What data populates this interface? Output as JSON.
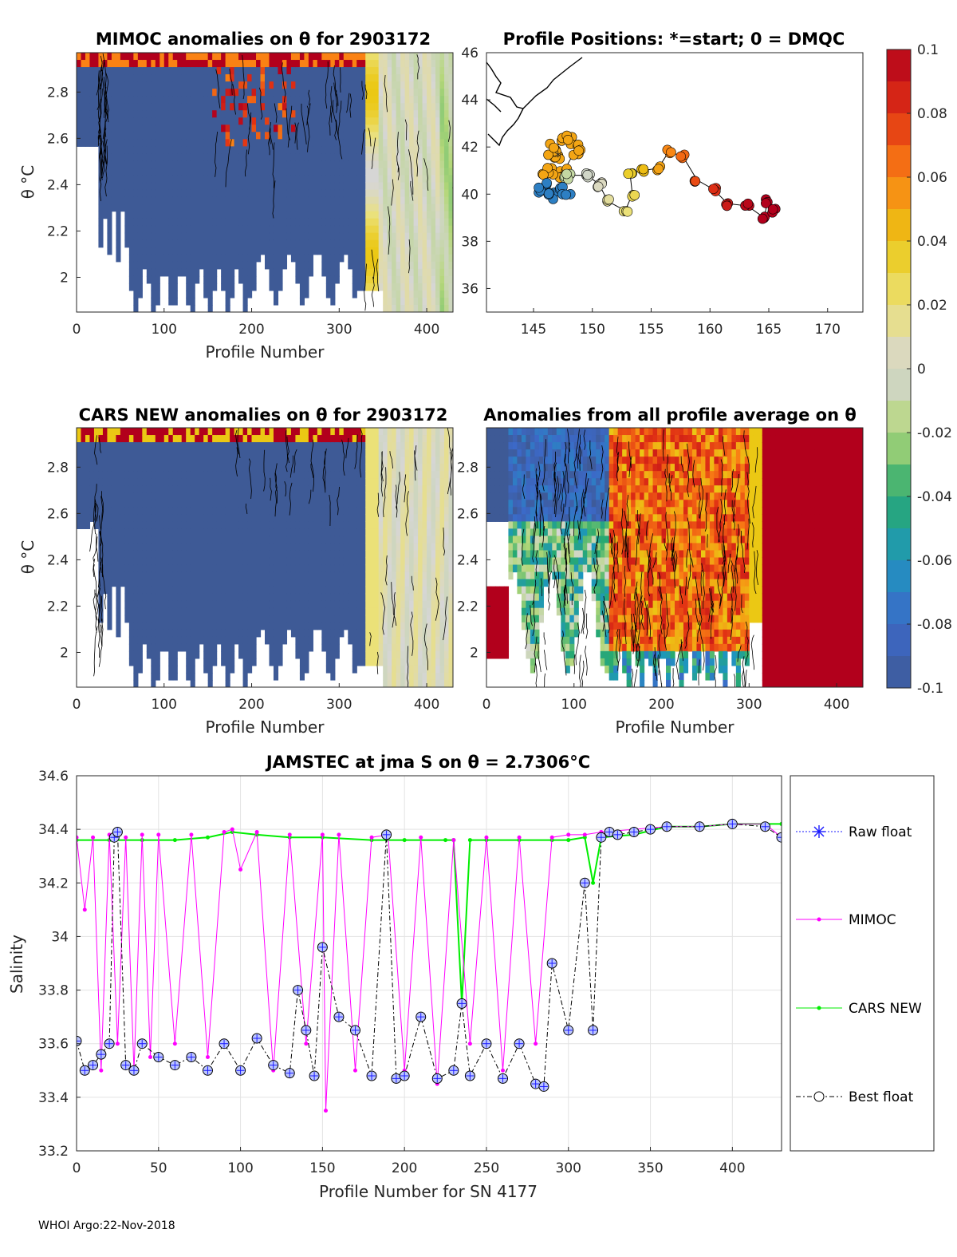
{
  "footer": "WHOI Argo:22-Nov-2018",
  "colors": {
    "mimoc": "#ff00ff",
    "cars": "#00ee00",
    "raw": "#1a1aff",
    "best": "#000000",
    "saturated_low": "#3e5a96",
    "saturated_high": "#b2001c",
    "zero": "#d6d6d6"
  },
  "colorbar": {
    "ticks": [
      "0.1",
      "0.08",
      "0.06",
      "0.04",
      "0.02",
      "0",
      "-0.02",
      "-0.04",
      "-0.06",
      "-0.08",
      "-0.1"
    ],
    "range": [
      -0.1,
      0.1
    ]
  },
  "chart_data": [
    {
      "id": "mimoc",
      "type": "heatmap",
      "title": "MIMOC anomalies on θ  for 2903172",
      "xlabel": "Profile Number",
      "ylabel": "θ °C",
      "xlim": [
        0,
        430
      ],
      "ylim": [
        1.85,
        2.97
      ],
      "xticks": [
        "0",
        "100",
        "200",
        "300",
        "400"
      ],
      "yticks": [
        "2",
        "2.2",
        "2.4",
        "2.6",
        "2.8"
      ],
      "summary": "mostly strong negative anomalies (~ -0.1) for profiles 0-330, near-zero anomalies for profiles 340-430, positive patches near top"
    },
    {
      "id": "positions",
      "type": "scatter",
      "title": "Profile Positions: *=start; 0 = DMQC",
      "xlim": [
        141,
        173
      ],
      "ylim": [
        35,
        46
      ],
      "xticks": [
        "145",
        "150",
        "155",
        "160",
        "165",
        "170"
      ],
      "yticks": [
        "36",
        "38",
        "40",
        "42",
        "44",
        "46"
      ],
      "track": [
        {
          "lon": 147.2,
          "lat": 41.6
        },
        {
          "lon": 146.5,
          "lat": 41.9
        },
        {
          "lon": 147.8,
          "lat": 42.3
        },
        {
          "lon": 148.6,
          "lat": 41.9
        },
        {
          "lon": 147.5,
          "lat": 40.9
        },
        {
          "lon": 146.2,
          "lat": 40.9
        },
        {
          "lon": 145.7,
          "lat": 40.3
        },
        {
          "lon": 146.6,
          "lat": 39.9
        },
        {
          "lon": 147.7,
          "lat": 40.2
        },
        {
          "lon": 147.9,
          "lat": 40.8
        },
        {
          "lon": 149.6,
          "lat": 40.8
        },
        {
          "lon": 150.6,
          "lat": 40.4
        },
        {
          "lon": 151.3,
          "lat": 39.7
        },
        {
          "lon": 152.8,
          "lat": 39.3
        },
        {
          "lon": 153.4,
          "lat": 40.0
        },
        {
          "lon": 153.2,
          "lat": 40.9
        },
        {
          "lon": 154.3,
          "lat": 41.0
        },
        {
          "lon": 155.6,
          "lat": 41.1
        },
        {
          "lon": 156.5,
          "lat": 41.8
        },
        {
          "lon": 157.7,
          "lat": 41.6
        },
        {
          "lon": 158.9,
          "lat": 40.6
        },
        {
          "lon": 160.3,
          "lat": 40.2
        },
        {
          "lon": 161.5,
          "lat": 39.6
        },
        {
          "lon": 163.2,
          "lat": 39.5
        },
        {
          "lon": 164.6,
          "lat": 39.0
        },
        {
          "lon": 164.9,
          "lat": 39.7
        },
        {
          "lon": 165.4,
          "lat": 39.3
        }
      ]
    },
    {
      "id": "cars",
      "type": "heatmap",
      "title": "CARS NEW anomalies on θ for 2903172",
      "xlabel": "Profile Number",
      "ylabel": "θ °C",
      "xlim": [
        0,
        430
      ],
      "ylim": [
        1.85,
        2.97
      ],
      "xticks": [
        "0",
        "100",
        "200",
        "300",
        "400"
      ],
      "yticks": [
        "2",
        "2.2",
        "2.4",
        "2.6",
        "2.8"
      ],
      "summary": "mostly strong negative anomalies (~ -0.1) for profiles 0-330, near-zero anomalies for profiles 340-430"
    },
    {
      "id": "allavg",
      "type": "heatmap",
      "title": "Anomalies from all profile average on θ",
      "xlabel": "Profile Number",
      "xlim": [
        0,
        430
      ],
      "ylim": [
        1.85,
        2.97
      ],
      "xticks": [
        "0",
        "100",
        "200",
        "300",
        "400"
      ],
      "yticks": [
        "2",
        "2.2",
        "2.4",
        "2.6",
        "2.8"
      ],
      "summary": "negative/mixed anomalies for profiles 0-140, positive anomalies 140-300, strong positive (~0.1) for profiles 310-430"
    },
    {
      "id": "salinity",
      "type": "line",
      "title": "JAMSTEC at jma S on θ = 2.7306°C",
      "xlabel": "Profile Number for SN 4177",
      "ylabel": "Salinity",
      "xlim": [
        0,
        430
      ],
      "ylim": [
        33.2,
        34.6
      ],
      "xticks": [
        "0",
        "50",
        "100",
        "150",
        "200",
        "250",
        "300",
        "350",
        "400"
      ],
      "yticks": [
        "33.2",
        "33.4",
        "33.6",
        "33.8",
        "34",
        "34.2",
        "34.4",
        "34.6"
      ],
      "grid": true,
      "legend": [
        "Raw float",
        "MIMOC",
        "CARS NEW",
        "Best float"
      ],
      "series": [
        {
          "name": "CARS NEW",
          "x": [
            0,
            20,
            40,
            60,
            80,
            95,
            110,
            130,
            150,
            180,
            200,
            225,
            230,
            235,
            240,
            250,
            270,
            290,
            300,
            310,
            315,
            320,
            340,
            360,
            380,
            400,
            420,
            430
          ],
          "y": [
            34.36,
            34.36,
            34.36,
            34.36,
            34.37,
            34.39,
            34.38,
            34.37,
            34.37,
            34.36,
            34.36,
            34.36,
            34.36,
            33.75,
            34.36,
            34.36,
            34.36,
            34.36,
            34.36,
            34.37,
            34.2,
            34.37,
            34.38,
            34.41,
            34.41,
            34.42,
            34.42,
            34.42
          ]
        },
        {
          "name": "MIMOC",
          "x": [
            0,
            5,
            10,
            15,
            20,
            25,
            30,
            35,
            40,
            45,
            50,
            60,
            70,
            80,
            90,
            95,
            100,
            110,
            120,
            130,
            140,
            150,
            152,
            160,
            170,
            180,
            190,
            200,
            210,
            220,
            230,
            240,
            250,
            260,
            270,
            280,
            290,
            300,
            310,
            320,
            340,
            360,
            380,
            400,
            420,
            430
          ],
          "y": [
            34.37,
            34.1,
            34.37,
            33.5,
            34.38,
            33.6,
            34.37,
            33.5,
            34.38,
            33.55,
            34.38,
            33.6,
            34.38,
            33.55,
            34.39,
            34.4,
            34.25,
            34.39,
            33.5,
            34.38,
            33.6,
            34.38,
            33.35,
            34.38,
            33.5,
            34.37,
            34.38,
            33.5,
            34.37,
            33.45,
            34.36,
            33.6,
            34.37,
            33.5,
            34.37,
            33.6,
            34.37,
            34.38,
            34.38,
            34.39,
            34.4,
            34.41,
            34.41,
            34.42,
            34.42,
            34.37
          ]
        },
        {
          "name": "Best float",
          "x": [
            0,
            5,
            10,
            15,
            20,
            23,
            25,
            30,
            35,
            40,
            50,
            60,
            70,
            80,
            90,
            100,
            110,
            120,
            130,
            135,
            140,
            145,
            150,
            160,
            170,
            180,
            189,
            195,
            200,
            210,
            220,
            230,
            235,
            240,
            250,
            260,
            270,
            280,
            285,
            290,
            300,
            310,
            315,
            320,
            325,
            330,
            340,
            350,
            360,
            380,
            400,
            420,
            430
          ],
          "y": [
            33.61,
            33.5,
            33.52,
            33.56,
            33.6,
            34.37,
            34.39,
            33.52,
            33.5,
            33.6,
            33.55,
            33.52,
            33.55,
            33.5,
            33.6,
            33.5,
            33.62,
            33.52,
            33.49,
            33.8,
            33.65,
            33.48,
            33.96,
            33.7,
            33.65,
            33.48,
            34.38,
            33.47,
            33.48,
            33.7,
            33.47,
            33.5,
            33.75,
            33.48,
            33.6,
            33.47,
            33.6,
            33.45,
            33.44,
            33.9,
            33.65,
            34.2,
            33.65,
            34.37,
            34.39,
            34.38,
            34.39,
            34.4,
            34.41,
            34.41,
            34.42,
            34.41,
            34.37
          ]
        }
      ]
    }
  ]
}
